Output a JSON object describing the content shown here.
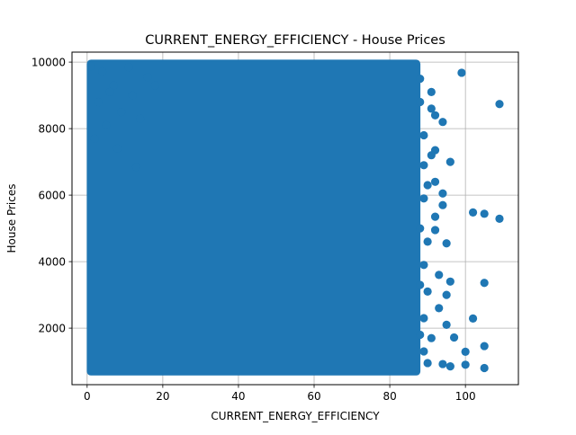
{
  "chart_data": {
    "type": "scatter",
    "title": "CURRENT_ENERGY_EFFICIENCY - House Prices",
    "xlabel": "CURRENT_ENERGY_EFFICIENCY",
    "ylabel": "House Prices",
    "xlim": [
      -4,
      114
    ],
    "ylim": [
      300,
      10300
    ],
    "xticks": [
      0,
      20,
      40,
      60,
      80,
      100
    ],
    "yticks": [
      2000,
      4000,
      6000,
      8000,
      10000
    ],
    "xtick_labels": [
      "0",
      "20",
      "40",
      "60",
      "80",
      "100"
    ],
    "ytick_labels": [
      "2000",
      "4000",
      "6000",
      "8000",
      "10000"
    ],
    "grid": true,
    "marker_color": "#1f77b4",
    "dense_region": {
      "x_range": [
        1,
        87
      ],
      "y_range": [
        700,
        9950
      ]
    },
    "points": [
      {
        "x": 99,
        "y": 9680
      },
      {
        "x": 109,
        "y": 8740
      },
      {
        "x": 102,
        "y": 5480
      },
      {
        "x": 105,
        "y": 5440
      },
      {
        "x": 109,
        "y": 5290
      },
      {
        "x": 105,
        "y": 3360
      },
      {
        "x": 102,
        "y": 2290
      },
      {
        "x": 105,
        "y": 1460
      },
      {
        "x": 100,
        "y": 1290
      },
      {
        "x": 100,
        "y": 900
      },
      {
        "x": 105,
        "y": 800
      },
      {
        "x": 96,
        "y": 7000
      },
      {
        "x": 96,
        "y": 850
      },
      {
        "x": 96,
        "y": 3400
      },
      {
        "x": 97,
        "y": 1720
      },
      {
        "x": 94,
        "y": 8200
      },
      {
        "x": 94,
        "y": 6050
      },
      {
        "x": 94,
        "y": 5700
      },
      {
        "x": 95,
        "y": 4550
      },
      {
        "x": 95,
        "y": 3000
      },
      {
        "x": 95,
        "y": 2100
      },
      {
        "x": 94,
        "y": 920
      },
      {
        "x": 92,
        "y": 8400
      },
      {
        "x": 92,
        "y": 7350
      },
      {
        "x": 92,
        "y": 6400
      },
      {
        "x": 92,
        "y": 5350
      },
      {
        "x": 92,
        "y": 4950
      },
      {
        "x": 93,
        "y": 3600
      },
      {
        "x": 93,
        "y": 2600
      },
      {
        "x": 91,
        "y": 9100
      },
      {
        "x": 91,
        "y": 8600
      },
      {
        "x": 91,
        "y": 7200
      },
      {
        "x": 90,
        "y": 6300
      },
      {
        "x": 90,
        "y": 4600
      },
      {
        "x": 90,
        "y": 3100
      },
      {
        "x": 91,
        "y": 1700
      },
      {
        "x": 90,
        "y": 950
      },
      {
        "x": 89,
        "y": 7800
      },
      {
        "x": 89,
        "y": 6900
      },
      {
        "x": 89,
        "y": 5900
      },
      {
        "x": 89,
        "y": 3900
      },
      {
        "x": 89,
        "y": 2300
      },
      {
        "x": 89,
        "y": 1300
      },
      {
        "x": 88,
        "y": 9500
      },
      {
        "x": 88,
        "y": 8800
      },
      {
        "x": 88,
        "y": 5000
      },
      {
        "x": 88,
        "y": 3300
      },
      {
        "x": 88,
        "y": 1800
      },
      {
        "x": 4,
        "y": 9720
      },
      {
        "x": 11,
        "y": 9850
      },
      {
        "x": 1,
        "y": 9880
      },
      {
        "x": 16,
        "y": 9550
      },
      {
        "x": 7,
        "y": 9300
      },
      {
        "x": 12,
        "y": 9000
      },
      {
        "x": 3,
        "y": 8800
      },
      {
        "x": 9,
        "y": 8500
      },
      {
        "x": 14,
        "y": 8300
      },
      {
        "x": 5,
        "y": 8100
      },
      {
        "x": 2,
        "y": 7700
      },
      {
        "x": 8,
        "y": 7400
      },
      {
        "x": 13,
        "y": 6850
      },
      {
        "x": 18,
        "y": 9300
      },
      {
        "x": 6,
        "y": 9100
      }
    ]
  }
}
